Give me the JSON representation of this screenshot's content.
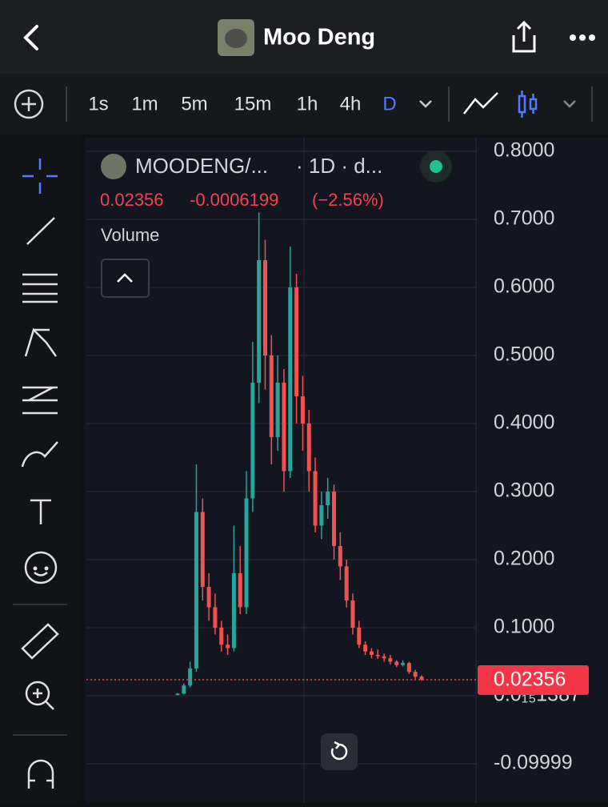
{
  "header": {
    "title": "Moo Deng"
  },
  "toolbar": {
    "timeframes": [
      "1s",
      "1m",
      "5m",
      "15m",
      "1h",
      "4h",
      "D"
    ]
  },
  "legend": {
    "symbol": "MOODENG/...",
    "interval": "· 1D · d...",
    "price": 0.02356,
    "change": -0.0006199,
    "change_pct": "(−2.56%)",
    "indicator": "Volume"
  },
  "chart_data": {
    "type": "candlestick",
    "up_color": "#26a69a",
    "down_color": "#ef5350",
    "open": [
      0.001,
      0.003,
      0.015,
      0.04,
      0.27,
      0.16,
      0.13,
      0.1,
      0.075,
      0.07,
      0.18,
      0.13,
      0.29,
      0.46,
      0.64,
      0.5,
      0.38,
      0.46,
      0.33,
      0.6,
      0.44,
      0.4,
      0.33,
      0.25,
      0.28,
      0.3,
      0.22,
      0.19,
      0.14,
      0.1,
      0.075,
      0.065,
      0.06,
      0.058,
      0.055,
      0.05,
      0.045,
      0.048,
      0.035,
      0.028
    ],
    "high": [
      0.004,
      0.018,
      0.05,
      0.34,
      0.29,
      0.18,
      0.15,
      0.11,
      0.09,
      0.25,
      0.22,
      0.33,
      0.52,
      0.71,
      0.67,
      0.53,
      0.5,
      0.48,
      0.66,
      0.62,
      0.47,
      0.42,
      0.35,
      0.3,
      0.32,
      0.31,
      0.24,
      0.2,
      0.15,
      0.11,
      0.08,
      0.07,
      0.068,
      0.062,
      0.06,
      0.052,
      0.052,
      0.05,
      0.038,
      0.03
    ],
    "low": [
      0.0008,
      0.002,
      0.012,
      0.035,
      0.14,
      0.11,
      0.09,
      0.065,
      0.06,
      0.065,
      0.12,
      0.12,
      0.27,
      0.43,
      0.45,
      0.34,
      0.36,
      0.3,
      0.32,
      0.4,
      0.36,
      0.3,
      0.24,
      0.23,
      0.26,
      0.2,
      0.17,
      0.13,
      0.09,
      0.07,
      0.06,
      0.055,
      0.054,
      0.05,
      0.046,
      0.042,
      0.043,
      0.032,
      0.025,
      0.022
    ],
    "close": [
      0.003,
      0.015,
      0.04,
      0.27,
      0.16,
      0.13,
      0.1,
      0.075,
      0.07,
      0.18,
      0.13,
      0.29,
      0.46,
      0.64,
      0.5,
      0.38,
      0.46,
      0.33,
      0.6,
      0.44,
      0.4,
      0.33,
      0.25,
      0.28,
      0.3,
      0.22,
      0.19,
      0.14,
      0.1,
      0.075,
      0.065,
      0.06,
      0.058,
      0.055,
      0.05,
      0.045,
      0.048,
      0.035,
      0.028,
      0.02356
    ],
    "last_price": 0.02356,
    "ylim": [
      -0.11,
      0.81
    ],
    "yticks": [
      {
        "value": 0.8,
        "label": "0.8000"
      },
      {
        "value": 0.7,
        "label": "0.7000"
      },
      {
        "value": 0.6,
        "label": "0.6000"
      },
      {
        "value": 0.5,
        "label": "0.5000"
      },
      {
        "value": 0.4,
        "label": "0.4000"
      },
      {
        "value": 0.3,
        "label": "0.3000"
      },
      {
        "value": 0.2,
        "label": "0.2000"
      },
      {
        "value": 0.1,
        "label": "0.1000"
      },
      {
        "value": 1.387e-16,
        "label": "0.0₁₅1387"
      },
      -0.09999
    ],
    "grid": true
  }
}
